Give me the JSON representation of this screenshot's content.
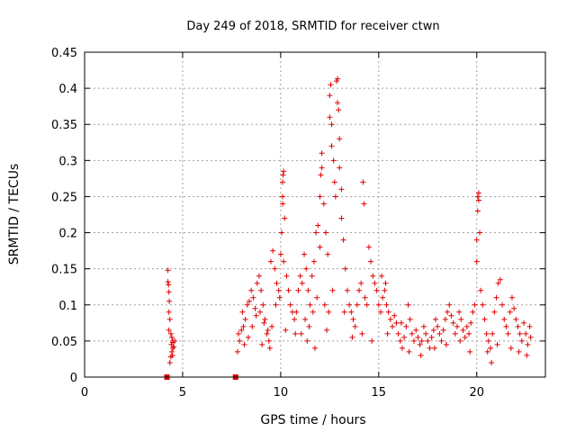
{
  "chart_data": {
    "type": "scatter",
    "title": "Day 249 of 2018, SRMTID for receiver ctwn",
    "xlabel": "GPS time / hours",
    "ylabel": "SRMTID / TECUs",
    "xlim": [
      0,
      23.5
    ],
    "ylim": [
      0,
      0.45
    ],
    "xticks": [
      0,
      5,
      10,
      15,
      20
    ],
    "yticks": [
      0,
      0.05,
      0.1,
      0.15,
      0.2,
      0.25,
      0.3,
      0.35,
      0.4,
      0.45
    ],
    "xtick_labels": [
      "0",
      "5",
      "10",
      "15",
      "20"
    ],
    "ytick_labels": [
      "0",
      "0.05",
      "0.1",
      "0.15",
      "0.2",
      "0.25",
      "0.3",
      "0.35",
      "0.4",
      "0.45"
    ],
    "grid": true,
    "marker": "+",
    "series_color": "#e00000",
    "zero_markers": [
      {
        "x": 4.2,
        "y": 0
      },
      {
        "x": 7.7,
        "y": 0
      }
    ],
    "series": [
      {
        "name": "SRMTID",
        "points": [
          [
            4.25,
            0.148
          ],
          [
            4.25,
            0.132
          ],
          [
            4.28,
            0.128
          ],
          [
            4.3,
            0.118
          ],
          [
            4.32,
            0.105
          ],
          [
            4.3,
            0.09
          ],
          [
            4.35,
            0.08
          ],
          [
            4.3,
            0.065
          ],
          [
            4.4,
            0.06
          ],
          [
            4.45,
            0.055
          ],
          [
            4.5,
            0.05
          ],
          [
            4.42,
            0.045
          ],
          [
            4.5,
            0.04
          ],
          [
            4.45,
            0.035
          ],
          [
            4.48,
            0.03
          ],
          [
            4.4,
            0.028
          ],
          [
            4.55,
            0.042
          ],
          [
            4.6,
            0.05
          ],
          [
            4.35,
            0.02
          ],
          [
            4.5,
            0.048
          ],
          [
            7.8,
            0.035
          ],
          [
            7.9,
            0.05
          ],
          [
            8.0,
            0.065
          ],
          [
            8.1,
            0.07
          ],
          [
            8.2,
            0.08
          ],
          [
            7.85,
            0.06
          ],
          [
            8.05,
            0.09
          ],
          [
            8.3,
            0.1
          ],
          [
            8.4,
            0.105
          ],
          [
            8.5,
            0.12
          ],
          [
            8.6,
            0.11
          ],
          [
            8.7,
            0.095
          ],
          [
            8.8,
            0.13
          ],
          [
            8.9,
            0.14
          ],
          [
            9.0,
            0.12
          ],
          [
            9.1,
            0.1
          ],
          [
            9.2,
            0.08
          ],
          [
            9.3,
            0.06
          ],
          [
            9.4,
            0.05
          ],
          [
            9.5,
            0.16
          ],
          [
            9.6,
            0.175
          ],
          [
            9.7,
            0.15
          ],
          [
            9.8,
            0.13
          ],
          [
            9.9,
            0.12
          ],
          [
            8.15,
            0.045
          ],
          [
            8.35,
            0.055
          ],
          [
            8.55,
            0.07
          ],
          [
            8.75,
            0.085
          ],
          [
            8.95,
            0.09
          ],
          [
            9.15,
            0.075
          ],
          [
            9.35,
            0.065
          ],
          [
            9.55,
            0.07
          ],
          [
            9.75,
            0.1
          ],
          [
            9.95,
            0.11
          ],
          [
            10.0,
            0.17
          ],
          [
            10.05,
            0.2
          ],
          [
            10.1,
            0.24
          ],
          [
            10.1,
            0.27
          ],
          [
            10.12,
            0.28
          ],
          [
            10.15,
            0.285
          ],
          [
            10.1,
            0.25
          ],
          [
            10.2,
            0.22
          ],
          [
            10.15,
            0.16
          ],
          [
            10.3,
            0.14
          ],
          [
            10.4,
            0.12
          ],
          [
            10.5,
            0.1
          ],
          [
            10.6,
            0.09
          ],
          [
            10.7,
            0.08
          ],
          [
            10.8,
            0.09
          ],
          [
            10.9,
            0.12
          ],
          [
            11.0,
            0.14
          ],
          [
            11.1,
            0.13
          ],
          [
            11.2,
            0.17
          ],
          [
            11.3,
            0.15
          ],
          [
            11.4,
            0.12
          ],
          [
            11.5,
            0.1
          ],
          [
            11.6,
            0.14
          ],
          [
            11.7,
            0.16
          ],
          [
            11.8,
            0.2
          ],
          [
            11.9,
            0.21
          ],
          [
            12.0,
            0.18
          ],
          [
            12.0,
            0.25
          ],
          [
            12.05,
            0.28
          ],
          [
            12.1,
            0.31
          ],
          [
            12.1,
            0.29
          ],
          [
            12.2,
            0.24
          ],
          [
            12.3,
            0.2
          ],
          [
            12.4,
            0.17
          ],
          [
            12.5,
            0.36
          ],
          [
            12.5,
            0.39
          ],
          [
            12.55,
            0.405
          ],
          [
            12.6,
            0.35
          ],
          [
            12.6,
            0.32
          ],
          [
            12.7,
            0.3
          ],
          [
            12.75,
            0.27
          ],
          [
            12.8,
            0.25
          ],
          [
            12.85,
            0.41
          ],
          [
            12.9,
            0.413
          ],
          [
            12.9,
            0.38
          ],
          [
            12.95,
            0.37
          ],
          [
            13.0,
            0.33
          ],
          [
            13.0,
            0.29
          ],
          [
            13.1,
            0.26
          ],
          [
            13.1,
            0.22
          ],
          [
            13.2,
            0.19
          ],
          [
            13.3,
            0.15
          ],
          [
            13.4,
            0.12
          ],
          [
            13.5,
            0.1
          ],
          [
            11.05,
            0.06
          ],
          [
            11.25,
            0.08
          ],
          [
            11.45,
            0.07
          ],
          [
            11.65,
            0.09
          ],
          [
            11.85,
            0.11
          ],
          [
            12.25,
            0.1
          ],
          [
            12.45,
            0.09
          ],
          [
            12.65,
            0.12
          ],
          [
            13.6,
            0.09
          ],
          [
            13.7,
            0.08
          ],
          [
            13.8,
            0.07
          ],
          [
            13.9,
            0.1
          ],
          [
            14.0,
            0.12
          ],
          [
            14.1,
            0.13
          ],
          [
            14.2,
            0.27
          ],
          [
            14.25,
            0.24
          ],
          [
            14.3,
            0.11
          ],
          [
            14.4,
            0.1
          ],
          [
            14.5,
            0.18
          ],
          [
            14.6,
            0.16
          ],
          [
            14.7,
            0.14
          ],
          [
            14.8,
            0.13
          ],
          [
            14.9,
            0.12
          ],
          [
            15.0,
            0.1
          ],
          [
            15.1,
            0.09
          ],
          [
            15.2,
            0.11
          ],
          [
            15.3,
            0.12
          ],
          [
            15.4,
            0.1
          ],
          [
            15.5,
            0.09
          ],
          [
            15.6,
            0.08
          ],
          [
            15.7,
            0.07
          ],
          [
            15.8,
            0.085
          ],
          [
            15.9,
            0.075
          ],
          [
            16.0,
            0.06
          ],
          [
            16.1,
            0.05
          ],
          [
            16.2,
            0.04
          ],
          [
            16.3,
            0.055
          ],
          [
            16.4,
            0.07
          ],
          [
            16.5,
            0.1
          ],
          [
            16.6,
            0.08
          ],
          [
            16.7,
            0.06
          ],
          [
            16.8,
            0.05
          ],
          [
            16.9,
            0.065
          ],
          [
            17.0,
            0.055
          ],
          [
            17.1,
            0.045
          ],
          [
            17.2,
            0.05
          ],
          [
            17.3,
            0.07
          ],
          [
            17.4,
            0.06
          ],
          [
            17.5,
            0.05
          ],
          [
            17.6,
            0.04
          ],
          [
            17.7,
            0.055
          ],
          [
            17.8,
            0.065
          ],
          [
            17.9,
            0.08
          ],
          [
            18.0,
            0.07
          ],
          [
            18.1,
            0.06
          ],
          [
            18.2,
            0.05
          ],
          [
            18.3,
            0.065
          ],
          [
            18.4,
            0.08
          ],
          [
            18.5,
            0.09
          ],
          [
            18.6,
            0.1
          ],
          [
            18.7,
            0.085
          ],
          [
            18.8,
            0.075
          ],
          [
            18.9,
            0.06
          ],
          [
            19.0,
            0.07
          ],
          [
            19.1,
            0.09
          ],
          [
            19.2,
            0.08
          ],
          [
            19.3,
            0.065
          ],
          [
            19.4,
            0.055
          ],
          [
            19.5,
            0.07
          ],
          [
            19.6,
            0.06
          ],
          [
            19.7,
            0.075
          ],
          [
            19.8,
            0.09
          ],
          [
            19.9,
            0.1
          ],
          [
            20.0,
            0.16
          ],
          [
            20.0,
            0.19
          ],
          [
            20.05,
            0.23
          ],
          [
            20.05,
            0.25
          ],
          [
            20.1,
            0.255
          ],
          [
            20.1,
            0.245
          ],
          [
            20.15,
            0.2
          ],
          [
            20.2,
            0.12
          ],
          [
            20.3,
            0.1
          ],
          [
            20.4,
            0.08
          ],
          [
            20.5,
            0.06
          ],
          [
            20.6,
            0.05
          ],
          [
            20.7,
            0.04
          ],
          [
            20.8,
            0.06
          ],
          [
            20.9,
            0.09
          ],
          [
            21.0,
            0.11
          ],
          [
            21.1,
            0.13
          ],
          [
            21.2,
            0.135
          ],
          [
            21.3,
            0.1
          ],
          [
            21.4,
            0.08
          ],
          [
            21.5,
            0.07
          ],
          [
            21.6,
            0.06
          ],
          [
            21.7,
            0.09
          ],
          [
            21.8,
            0.11
          ],
          [
            21.9,
            0.095
          ],
          [
            22.0,
            0.08
          ],
          [
            22.1,
            0.07
          ],
          [
            22.2,
            0.06
          ],
          [
            22.3,
            0.05
          ],
          [
            22.4,
            0.075
          ],
          [
            22.5,
            0.06
          ],
          [
            22.6,
            0.045
          ],
          [
            22.7,
            0.07
          ],
          [
            15.15,
            0.14
          ],
          [
            15.35,
            0.13
          ],
          [
            16.15,
            0.075
          ],
          [
            16.55,
            0.035
          ],
          [
            17.15,
            0.03
          ],
          [
            17.85,
            0.04
          ],
          [
            18.45,
            0.045
          ],
          [
            19.15,
            0.05
          ],
          [
            19.65,
            0.035
          ],
          [
            20.55,
            0.035
          ],
          [
            20.75,
            0.02
          ],
          [
            21.05,
            0.045
          ],
          [
            21.75,
            0.04
          ],
          [
            22.15,
            0.035
          ],
          [
            22.55,
            0.03
          ],
          [
            22.75,
            0.055
          ],
          [
            9.05,
            0.045
          ],
          [
            9.45,
            0.04
          ],
          [
            10.25,
            0.065
          ],
          [
            10.75,
            0.06
          ],
          [
            11.35,
            0.05
          ],
          [
            11.75,
            0.04
          ],
          [
            12.35,
            0.065
          ],
          [
            13.25,
            0.09
          ],
          [
            13.65,
            0.055
          ],
          [
            14.15,
            0.06
          ],
          [
            14.65,
            0.05
          ],
          [
            15.45,
            0.06
          ]
        ]
      }
    ]
  }
}
